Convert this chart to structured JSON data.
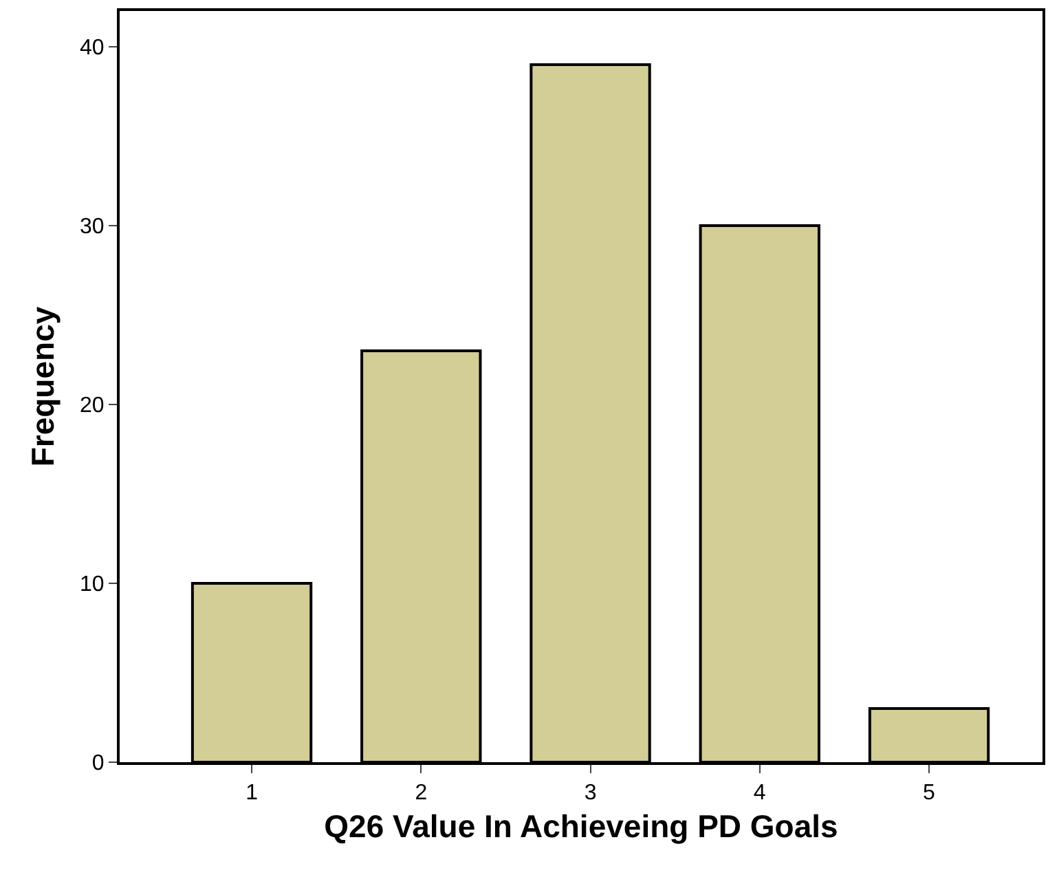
{
  "chart_data": {
    "type": "bar",
    "xlabel": "Q26 Value In Achieveing PD Goals",
    "ylabel": "Frequency",
    "categories": [
      "1",
      "2",
      "3",
      "4",
      "5"
    ],
    "values": [
      10,
      23,
      39,
      30,
      3
    ],
    "color": "#d3cd96",
    "ylim": [
      0,
      42
    ],
    "yticks": [
      0,
      10,
      20,
      30,
      40
    ]
  }
}
